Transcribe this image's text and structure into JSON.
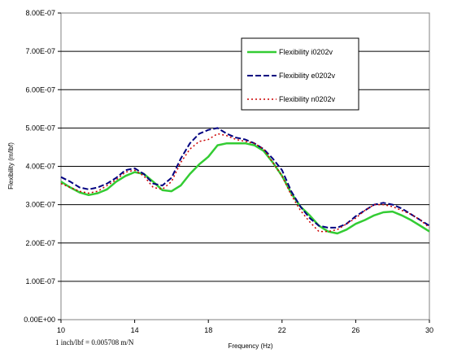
{
  "note": "1 inch/lbf = 0.005708 m/N",
  "chart_data": {
    "type": "line",
    "xlabel": "Frequency (Hz)",
    "ylabel": "Flexibility (m/lbf)",
    "xlim": [
      10,
      30
    ],
    "ylim": [
      0,
      8e-07
    ],
    "x_ticks": [
      10,
      14,
      18,
      22,
      26,
      30
    ],
    "x_tick_labels": [
      "10",
      "14",
      "18",
      "22",
      "26",
      "30"
    ],
    "y_ticks": [
      0,
      1e-07,
      2e-07,
      3e-07,
      4e-07,
      5e-07,
      6e-07,
      7e-07,
      8e-07
    ],
    "y_tick_labels": [
      "0.00E+00",
      "1.00E-07",
      "2.00E-07",
      "3.00E-07",
      "4.00E-07",
      "5.00E-07",
      "6.00E-07",
      "7.00E-07",
      "8.00E-07"
    ],
    "grid": "horizontal",
    "legend_position": "top-right",
    "series": [
      {
        "name": "Flexibility i0202v",
        "color": "#33cc33",
        "style": "solid",
        "x": [
          10,
          10.5,
          11,
          11.5,
          12,
          12.5,
          13,
          13.5,
          14,
          14.5,
          15,
          15.5,
          16,
          16.5,
          17,
          17.5,
          18,
          18.5,
          19,
          19.5,
          20,
          20.5,
          21,
          21.5,
          22,
          22.5,
          23,
          23.5,
          24,
          24.5,
          25,
          25.5,
          26,
          26.5,
          27,
          27.5,
          28,
          28.5,
          29,
          29.5,
          30
        ],
        "y": [
          3.6e-07,
          3.45e-07,
          3.32e-07,
          3.25e-07,
          3.3e-07,
          3.4e-07,
          3.6e-07,
          3.75e-07,
          3.85e-07,
          3.8e-07,
          3.6e-07,
          3.38e-07,
          3.35e-07,
          3.5e-07,
          3.8e-07,
          4.05e-07,
          4.25e-07,
          4.55e-07,
          4.6e-07,
          4.6e-07,
          4.6e-07,
          4.55e-07,
          4.4e-07,
          4.1e-07,
          3.75e-07,
          3.3e-07,
          2.95e-07,
          2.72e-07,
          2.45e-07,
          2.3e-07,
          2.25e-07,
          2.35e-07,
          2.5e-07,
          2.6e-07,
          2.72e-07,
          2.8e-07,
          2.82e-07,
          2.72e-07,
          2.6e-07,
          2.45e-07,
          2.3e-07
        ]
      },
      {
        "name": "Flexibility e0202v",
        "color": "#000080",
        "style": "dash",
        "x": [
          10,
          10.5,
          11,
          11.5,
          12,
          12.5,
          13,
          13.5,
          14,
          14.5,
          15,
          15.5,
          16,
          16.5,
          17,
          17.5,
          18,
          18.5,
          19,
          19.5,
          20,
          20.5,
          21,
          21.5,
          22,
          22.5,
          23,
          23.5,
          24,
          24.5,
          25,
          25.5,
          26,
          26.5,
          27,
          27.5,
          28,
          28.5,
          29,
          29.5,
          30
        ],
        "y": [
          3.72e-07,
          3.6e-07,
          3.45e-07,
          3.4e-07,
          3.45e-07,
          3.55e-07,
          3.7e-07,
          3.9e-07,
          3.95e-07,
          3.8e-07,
          3.55e-07,
          3.5e-07,
          3.7e-07,
          4.2e-07,
          4.6e-07,
          4.85e-07,
          4.95e-07,
          5e-07,
          4.85e-07,
          4.75e-07,
          4.7e-07,
          4.6e-07,
          4.45e-07,
          4.2e-07,
          3.9e-07,
          3.35e-07,
          2.95e-07,
          2.65e-07,
          2.45e-07,
          2.4e-07,
          2.4e-07,
          2.5e-07,
          2.7e-07,
          2.85e-07,
          3e-07,
          3.05e-07,
          3e-07,
          2.9e-07,
          2.75e-07,
          2.6e-07,
          2.45e-07
        ]
      },
      {
        "name": "Flexibility n0202v",
        "color": "#cc0000",
        "style": "dot",
        "x": [
          10,
          10.5,
          11,
          11.5,
          12,
          12.5,
          13,
          13.5,
          14,
          14.5,
          15,
          15.5,
          16,
          16.5,
          17,
          17.5,
          18,
          18.5,
          19,
          19.5,
          20,
          20.5,
          21,
          21.5,
          22,
          22.5,
          23,
          23.5,
          24,
          24.5,
          25,
          25.5,
          26,
          26.5,
          27,
          27.5,
          28,
          28.5,
          29,
          29.5,
          30
        ],
        "y": [
          3.55e-07,
          3.45e-07,
          3.35e-07,
          3.3e-07,
          3.35e-07,
          3.5e-07,
          3.65e-07,
          3.85e-07,
          3.9e-07,
          3.75e-07,
          3.45e-07,
          3.4e-07,
          3.6e-07,
          4.1e-07,
          4.45e-07,
          4.65e-07,
          4.7e-07,
          4.85e-07,
          4.8e-07,
          4.7e-07,
          4.65e-07,
          4.6e-07,
          4.45e-07,
          4.1e-07,
          3.75e-07,
          3.25e-07,
          2.85e-07,
          2.55e-07,
          2.3e-07,
          2.3e-07,
          2.35e-07,
          2.5e-07,
          2.65e-07,
          2.85e-07,
          3e-07,
          3e-07,
          2.95e-07,
          2.85e-07,
          2.75e-07,
          2.6e-07,
          2.4e-07
        ]
      }
    ]
  }
}
